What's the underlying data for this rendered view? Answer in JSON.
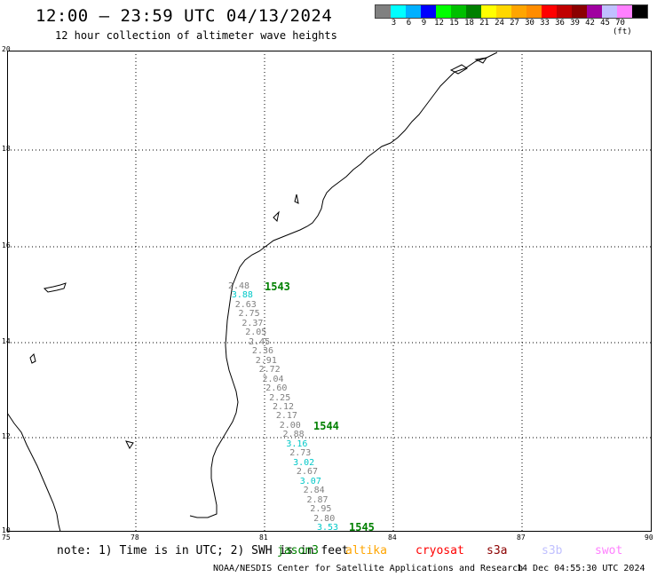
{
  "header": {
    "title": "12:00 – 23:59 UTC 04/13/2024",
    "subtitle": "12 hour collection of altimeter wave heights"
  },
  "colorbar": {
    "colors": [
      "#808080",
      "#00ffff",
      "#00b0ff",
      "#0000ff",
      "#00ff00",
      "#00c000",
      "#008000",
      "#ffff00",
      "#ffd700",
      "#ffa500",
      "#ff8c00",
      "#ff0000",
      "#c00000",
      "#8b0000",
      "#a000a0",
      "#c0c0ff",
      "#ff80ff",
      "#000000"
    ],
    "labels": [
      "3",
      "6",
      "9",
      "12",
      "15",
      "18",
      "21",
      "24",
      "27",
      "30",
      "33",
      "36",
      "39",
      "42",
      "45",
      "70 (ft)"
    ]
  },
  "axes": {
    "x_ticks": [
      "75",
      "78",
      "81",
      "84",
      "87",
      "90"
    ],
    "y_ticks": [
      "20",
      "18",
      "16",
      "14",
      "12",
      "10"
    ]
  },
  "tracks": [
    {
      "value": "2.48",
      "color": "#808080"
    },
    {
      "value": "3.88",
      "color": "#00c8c8"
    },
    {
      "value": "2.63",
      "color": "#808080"
    },
    {
      "value": "2.75",
      "color": "#808080"
    },
    {
      "value": "2.37",
      "color": "#808080"
    },
    {
      "value": "2.05",
      "color": "#808080"
    },
    {
      "value": "2.45",
      "color": "#808080"
    },
    {
      "value": "2.36",
      "color": "#808080"
    },
    {
      "value": "2.91",
      "color": "#808080"
    },
    {
      "value": "2.72",
      "color": "#808080"
    },
    {
      "value": "2.04",
      "color": "#808080"
    },
    {
      "value": "2.60",
      "color": "#808080"
    },
    {
      "value": "2.25",
      "color": "#808080"
    },
    {
      "value": "2.12",
      "color": "#808080"
    },
    {
      "value": "2.17",
      "color": "#808080"
    },
    {
      "value": "2.00",
      "color": "#808080"
    },
    {
      "value": "2.88",
      "color": "#808080"
    },
    {
      "value": "3.16",
      "color": "#00c8c8"
    },
    {
      "value": "2.73",
      "color": "#808080"
    },
    {
      "value": "3.02",
      "color": "#00c8c8"
    },
    {
      "value": "2.67",
      "color": "#808080"
    },
    {
      "value": "3.07",
      "color": "#00c8c8"
    },
    {
      "value": "2.84",
      "color": "#808080"
    },
    {
      "value": "2.87",
      "color": "#808080"
    },
    {
      "value": "2.95",
      "color": "#808080"
    },
    {
      "value": "2.80",
      "color": "#808080"
    },
    {
      "value": "3.53",
      "color": "#00c8c8"
    }
  ],
  "passes": [
    "1543",
    "1544",
    "1545"
  ],
  "footer": {
    "note": "note: 1) Time is in UTC; 2) SWH is in feet",
    "satellites": [
      {
        "name": "jason3",
        "color": "#008000"
      },
      {
        "name": "altika",
        "color": "#ffa500"
      },
      {
        "name": "cryosat",
        "color": "#ff0000"
      },
      {
        "name": "s3a",
        "color": "#8b0000"
      },
      {
        "name": "s3b",
        "color": "#c0c0ff"
      },
      {
        "name": "swot",
        "color": "#ff80ff"
      }
    ],
    "credit": "NOAA/NESDIS Center for Satellite Applications and Research",
    "timestamp": "14 Dec 04:55:30 UTC 2024"
  }
}
